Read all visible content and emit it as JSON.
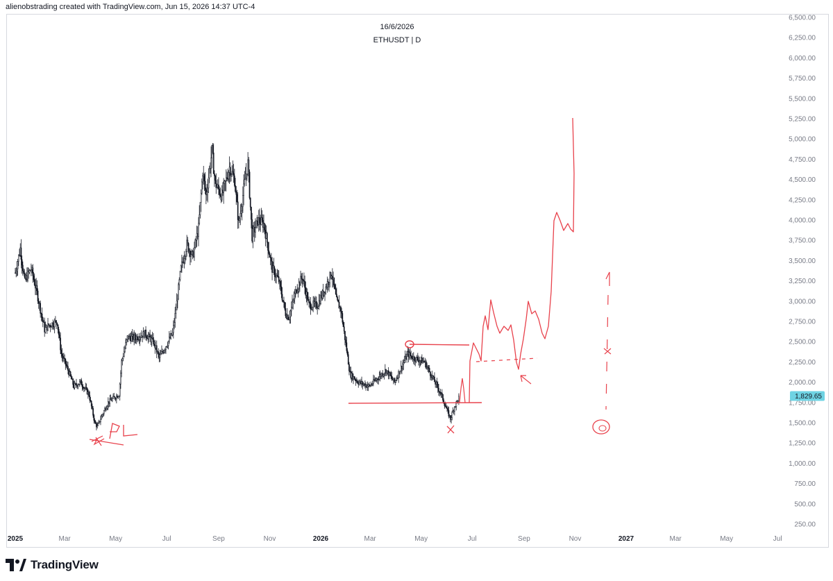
{
  "header": {
    "text": "alienobstrading created with TradingView.com, Jun 15, 2026 14:37 UTC-4"
  },
  "chart_info": {
    "date": "16/6/2026",
    "symbol": "ETHUSDT | D"
  },
  "footer": {
    "brand": "TradingView"
  },
  "colors": {
    "candle": "#131722",
    "annotation": "#e8414b",
    "price_tag": "#6fd3e3",
    "axis_text": "#787b86"
  },
  "chart_data": {
    "type": "line",
    "title": "",
    "xlabel": "",
    "ylabel": "",
    "ylim": [
      0,
      6500
    ],
    "y_ticks": [
      "6,500.00",
      "6,250.00",
      "6,000.00",
      "5,750.00",
      "5,500.00",
      "5,250.00",
      "5,000.00",
      "4,750.00",
      "4,500.00",
      "4,250.00",
      "4,000.00",
      "3,750.00",
      "3,500.00",
      "3,250.00",
      "3,000.00",
      "2,750.00",
      "2,500.00",
      "2,250.00",
      "2,000.00",
      "1,750.00",
      "1,500.00",
      "1,250.00",
      "1,000.00",
      "750.00",
      "500.00",
      "250.00"
    ],
    "x_ticks": [
      {
        "label": "2025",
        "date": "2025-01-01",
        "bold": true
      },
      {
        "label": "Mar",
        "date": "2025-03-01",
        "bold": false
      },
      {
        "label": "May",
        "date": "2025-05-01",
        "bold": false
      },
      {
        "label": "Jul",
        "date": "2025-07-01",
        "bold": false
      },
      {
        "label": "Sep",
        "date": "2025-09-01",
        "bold": false
      },
      {
        "label": "Nov",
        "date": "2025-11-01",
        "bold": false
      },
      {
        "label": "2026",
        "date": "2026-01-01",
        "bold": true
      },
      {
        "label": "Mar",
        "date": "2026-03-01",
        "bold": false
      },
      {
        "label": "May",
        "date": "2026-05-01",
        "bold": false
      },
      {
        "label": "Jul",
        "date": "2026-07-01",
        "bold": false
      },
      {
        "label": "Sep",
        "date": "2026-09-01",
        "bold": false
      },
      {
        "label": "Nov",
        "date": "2026-11-01",
        "bold": false
      },
      {
        "label": "2027",
        "date": "2027-01-01",
        "bold": true
      },
      {
        "label": "Mar",
        "date": "2027-03-01",
        "bold": false
      },
      {
        "label": "May",
        "date": "2027-05-01",
        "bold": false
      },
      {
        "label": "Jul",
        "date": "2027-07-01",
        "bold": false
      }
    ],
    "last_price": 1829.65,
    "last_price_label": "1,829.65",
    "series": [
      {
        "points": [
          [
            "2025-01-01",
            3350
          ],
          [
            "2025-01-07",
            3650
          ],
          [
            "2025-01-12",
            3250
          ],
          [
            "2025-01-20",
            3400
          ],
          [
            "2025-01-27",
            3100
          ],
          [
            "2025-02-02",
            2800
          ],
          [
            "2025-02-05",
            2650
          ],
          [
            "2025-02-10",
            2700
          ],
          [
            "2025-02-20",
            2750
          ],
          [
            "2025-02-25",
            2350
          ],
          [
            "2025-03-05",
            2150
          ],
          [
            "2025-03-12",
            1950
          ],
          [
            "2025-03-20",
            2000
          ],
          [
            "2025-03-30",
            1850
          ],
          [
            "2025-04-06",
            1500
          ],
          [
            "2025-04-09",
            1450
          ],
          [
            "2025-04-15",
            1600
          ],
          [
            "2025-04-22",
            1750
          ],
          [
            "2025-04-28",
            1800
          ],
          [
            "2025-05-05",
            1850
          ],
          [
            "2025-05-08",
            2250
          ],
          [
            "2025-05-15",
            2550
          ],
          [
            "2025-05-25",
            2550
          ],
          [
            "2025-06-05",
            2600
          ],
          [
            "2025-06-15",
            2500
          ],
          [
            "2025-06-22",
            2300
          ],
          [
            "2025-06-30",
            2450
          ],
          [
            "2025-07-08",
            2600
          ],
          [
            "2025-07-12",
            2900
          ],
          [
            "2025-07-18",
            3400
          ],
          [
            "2025-07-25",
            3700
          ],
          [
            "2025-08-01",
            3550
          ],
          [
            "2025-08-08",
            3900
          ],
          [
            "2025-08-13",
            4600
          ],
          [
            "2025-08-17",
            4300
          ],
          [
            "2025-08-24",
            4850
          ],
          [
            "2025-08-28",
            4450
          ],
          [
            "2025-09-05",
            4300
          ],
          [
            "2025-09-14",
            4650
          ],
          [
            "2025-09-20",
            4500
          ],
          [
            "2025-09-25",
            3950
          ],
          [
            "2025-10-02",
            4450
          ],
          [
            "2025-10-06",
            4700
          ],
          [
            "2025-10-11",
            3800
          ],
          [
            "2025-10-18",
            4000
          ],
          [
            "2025-10-25",
            3950
          ],
          [
            "2025-11-04",
            3400
          ],
          [
            "2025-11-12",
            3250
          ],
          [
            "2025-11-20",
            2850
          ],
          [
            "2025-11-24",
            2800
          ],
          [
            "2025-12-03",
            3150
          ],
          [
            "2025-12-10",
            3300
          ],
          [
            "2025-12-18",
            2950
          ],
          [
            "2025-12-28",
            2950
          ],
          [
            "2026-01-06",
            3150
          ],
          [
            "2026-01-14",
            3350
          ],
          [
            "2026-01-20",
            3000
          ],
          [
            "2026-01-25",
            2900
          ],
          [
            "2026-02-01",
            2400
          ],
          [
            "2026-02-05",
            2100
          ],
          [
            "2026-02-15",
            2000
          ],
          [
            "2026-02-28",
            1950
          ],
          [
            "2026-03-10",
            2050
          ],
          [
            "2026-03-20",
            2150
          ],
          [
            "2026-03-30",
            2000
          ],
          [
            "2026-04-08",
            2200
          ],
          [
            "2026-04-15",
            2350
          ],
          [
            "2026-04-22",
            2300
          ],
          [
            "2026-05-05",
            2250
          ],
          [
            "2026-05-15",
            2050
          ],
          [
            "2026-05-25",
            1850
          ],
          [
            "2026-06-01",
            1650
          ],
          [
            "2026-06-05",
            1550
          ],
          [
            "2026-06-10",
            1700
          ],
          [
            "2026-06-16",
            1830
          ]
        ]
      }
    ]
  },
  "annotations": {
    "pl_label": "PL"
  }
}
